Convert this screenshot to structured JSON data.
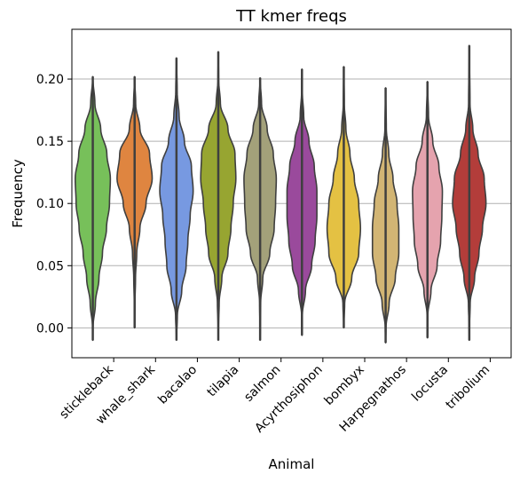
{
  "chart_data": {
    "type": "violin",
    "title": "TT kmer freqs",
    "xlabel": "Animal",
    "ylabel": "Frequency",
    "ylim": [
      -0.024,
      0.24
    ],
    "yticks": [
      "0.00",
      "0.05",
      "0.10",
      "0.15",
      "0.20"
    ],
    "grid": "horizontal",
    "categories": [
      "stickleback",
      "whale_shark",
      "bacalao",
      "tilapia",
      "salmon",
      "Acyrthosiphon",
      "bombyx",
      "Harpegnathos",
      "locusta",
      "tribolium"
    ],
    "series": [
      {
        "category": "stickleback",
        "color": "#77c05a",
        "min": -0.01,
        "max": 0.202,
        "density": [
          [
            -0.01,
            0
          ],
          [
            0.0,
            0.01
          ],
          [
            0.02,
            0.15
          ],
          [
            0.04,
            0.35
          ],
          [
            0.06,
            0.55
          ],
          [
            0.08,
            0.78
          ],
          [
            0.1,
            0.95
          ],
          [
            0.12,
            1.0
          ],
          [
            0.14,
            0.8
          ],
          [
            0.16,
            0.45
          ],
          [
            0.18,
            0.12
          ],
          [
            0.202,
            0
          ]
        ]
      },
      {
        "category": "whale_shark",
        "color": "#df8540",
        "min": 0.0,
        "max": 0.202,
        "density": [
          [
            0.0,
            0
          ],
          [
            0.02,
            0.02
          ],
          [
            0.04,
            0.05
          ],
          [
            0.06,
            0.12
          ],
          [
            0.08,
            0.3
          ],
          [
            0.1,
            0.65
          ],
          [
            0.12,
            1.0
          ],
          [
            0.14,
            0.85
          ],
          [
            0.16,
            0.3
          ],
          [
            0.18,
            0.06
          ],
          [
            0.202,
            0
          ]
        ]
      },
      {
        "category": "bacalao",
        "color": "#7799e1",
        "min": -0.01,
        "max": 0.217,
        "density": [
          [
            -0.01,
            0
          ],
          [
            0.01,
            0.05
          ],
          [
            0.03,
            0.3
          ],
          [
            0.05,
            0.55
          ],
          [
            0.07,
            0.65
          ],
          [
            0.09,
            0.78
          ],
          [
            0.11,
            0.95
          ],
          [
            0.13,
            0.85
          ],
          [
            0.15,
            0.45
          ],
          [
            0.17,
            0.15
          ],
          [
            0.19,
            0.04
          ],
          [
            0.217,
            0
          ]
        ]
      },
      {
        "category": "tilapia",
        "color": "#97a531",
        "min": -0.01,
        "max": 0.222,
        "density": [
          [
            -0.01,
            0
          ],
          [
            0.0,
            0.01
          ],
          [
            0.02,
            0.05
          ],
          [
            0.04,
            0.2
          ],
          [
            0.06,
            0.55
          ],
          [
            0.08,
            0.72
          ],
          [
            0.1,
            0.85
          ],
          [
            0.12,
            1.0
          ],
          [
            0.14,
            0.95
          ],
          [
            0.16,
            0.55
          ],
          [
            0.18,
            0.12
          ],
          [
            0.2,
            0.02
          ],
          [
            0.222,
            0
          ]
        ]
      },
      {
        "category": "salmon",
        "color": "#a3a17a",
        "min": -0.01,
        "max": 0.201,
        "density": [
          [
            -0.01,
            0
          ],
          [
            0.0,
            0.01
          ],
          [
            0.02,
            0.03
          ],
          [
            0.04,
            0.15
          ],
          [
            0.06,
            0.55
          ],
          [
            0.08,
            0.8
          ],
          [
            0.1,
            0.88
          ],
          [
            0.12,
            0.92
          ],
          [
            0.14,
            0.75
          ],
          [
            0.16,
            0.4
          ],
          [
            0.18,
            0.08
          ],
          [
            0.201,
            0
          ]
        ]
      },
      {
        "category": "Acyrthosiphon",
        "color": "#9a4a9c",
        "min": -0.006,
        "max": 0.208,
        "density": [
          [
            -0.006,
            0
          ],
          [
            0.01,
            0.02
          ],
          [
            0.03,
            0.2
          ],
          [
            0.05,
            0.55
          ],
          [
            0.07,
            0.75
          ],
          [
            0.09,
            0.85
          ],
          [
            0.11,
            0.85
          ],
          [
            0.13,
            0.7
          ],
          [
            0.15,
            0.4
          ],
          [
            0.17,
            0.1
          ],
          [
            0.19,
            0.02
          ],
          [
            0.208,
            0
          ]
        ]
      },
      {
        "category": "bombyx",
        "color": "#e4c143",
        "min": 0.0,
        "max": 0.21,
        "density": [
          [
            0.0,
            0
          ],
          [
            0.02,
            0.05
          ],
          [
            0.04,
            0.45
          ],
          [
            0.06,
            0.85
          ],
          [
            0.08,
            0.95
          ],
          [
            0.1,
            0.85
          ],
          [
            0.12,
            0.6
          ],
          [
            0.14,
            0.35
          ],
          [
            0.16,
            0.12
          ],
          [
            0.18,
            0.03
          ],
          [
            0.21,
            0
          ]
        ]
      },
      {
        "category": "Harpegnathos",
        "color": "#d2b574",
        "min": -0.012,
        "max": 0.193,
        "density": [
          [
            -0.012,
            0
          ],
          [
            0.0,
            0.02
          ],
          [
            0.02,
            0.2
          ],
          [
            0.04,
            0.55
          ],
          [
            0.06,
            0.75
          ],
          [
            0.08,
            0.75
          ],
          [
            0.1,
            0.65
          ],
          [
            0.12,
            0.42
          ],
          [
            0.14,
            0.18
          ],
          [
            0.16,
            0.04
          ],
          [
            0.193,
            0
          ]
        ]
      },
      {
        "category": "locusta",
        "color": "#e5a3ae",
        "min": -0.008,
        "max": 0.198,
        "density": [
          [
            -0.008,
            0
          ],
          [
            0.01,
            0.02
          ],
          [
            0.03,
            0.2
          ],
          [
            0.05,
            0.55
          ],
          [
            0.07,
            0.75
          ],
          [
            0.09,
            0.82
          ],
          [
            0.11,
            0.85
          ],
          [
            0.13,
            0.65
          ],
          [
            0.15,
            0.3
          ],
          [
            0.17,
            0.06
          ],
          [
            0.198,
            0
          ]
        ]
      },
      {
        "category": "tribolium",
        "color": "#b33d3a",
        "min": -0.01,
        "max": 0.227,
        "density": [
          [
            -0.01,
            0
          ],
          [
            0.0,
            0.01
          ],
          [
            0.02,
            0.05
          ],
          [
            0.04,
            0.3
          ],
          [
            0.06,
            0.55
          ],
          [
            0.08,
            0.75
          ],
          [
            0.1,
            0.95
          ],
          [
            0.12,
            0.85
          ],
          [
            0.14,
            0.5
          ],
          [
            0.16,
            0.2
          ],
          [
            0.18,
            0.04
          ],
          [
            0.227,
            0
          ]
        ]
      }
    ]
  }
}
